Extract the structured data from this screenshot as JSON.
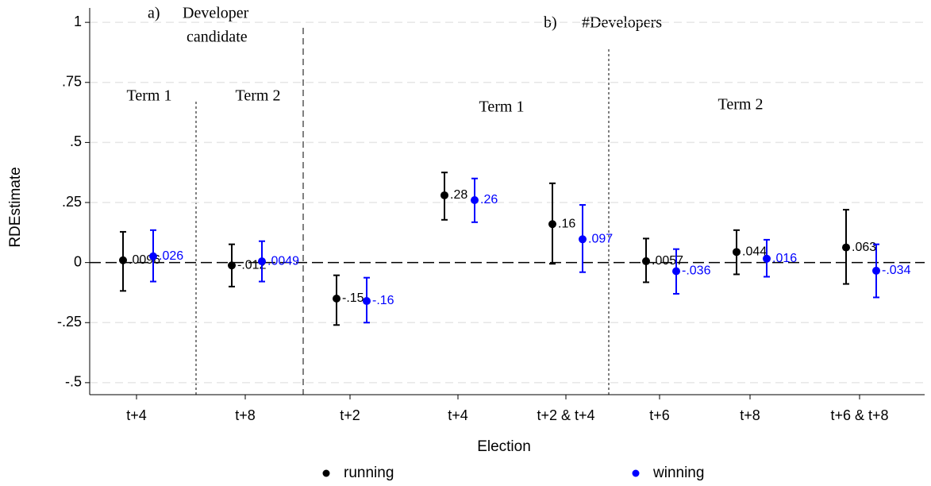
{
  "chart_data": {
    "type": "coefplot",
    "y_label": "RDEstimate",
    "x_label": "Election",
    "annotations": [
      "a)",
      "Developer",
      "candidate",
      "b)",
      "#Developers",
      "Term 1",
      "Term 2",
      "Term 1",
      "Term 2"
    ],
    "categories": [
      "t+4",
      "t+8",
      "t+2",
      "t+4",
      "t+2 & t+4",
      "t+6",
      "t+8",
      "t+6 & t+8"
    ],
    "series": [
      {
        "name": "running",
        "color": "#000000",
        "values": [
          0.0096,
          -0.012,
          -0.15,
          0.28,
          0.16,
          0.0057,
          0.044,
          0.063
        ],
        "value_labels": [
          ".0096",
          "-.012",
          "-.15",
          ".28",
          ".16",
          ".0057",
          ".044",
          ".063"
        ],
        "ci_low": [
          -0.118,
          -0.1,
          -0.26,
          0.178,
          -0.005,
          -0.082,
          -0.049,
          -0.089
        ],
        "ci_high": [
          0.128,
          0.076,
          -0.053,
          0.375,
          0.33,
          0.1,
          0.135,
          0.22
        ]
      },
      {
        "name": "winning",
        "color": "#0000ff",
        "values": [
          0.026,
          0.0049,
          -0.16,
          0.26,
          0.097,
          -0.036,
          0.016,
          -0.034
        ],
        "value_labels": [
          ".026",
          ".0049",
          "-.16",
          ".26",
          ".097",
          "-.036",
          ".016",
          "-.034"
        ],
        "ci_low": [
          -0.079,
          -0.079,
          -0.25,
          0.168,
          -0.04,
          -0.13,
          -0.059,
          -0.145
        ],
        "ci_high": [
          0.135,
          0.089,
          -0.063,
          0.35,
          0.24,
          0.056,
          0.095,
          0.076
        ]
      }
    ],
    "ylim": [
      -0.55,
      1.06
    ],
    "yticks": [
      {
        "value": -0.5,
        "label": "-.5"
      },
      {
        "value": -0.25,
        "label": "-.25"
      },
      0,
      {
        "value": 0.25,
        "label": ".25"
      },
      {
        "value": 0.5,
        "label": ".5"
      },
      {
        "value": 0.75,
        "label": ".75"
      },
      1
    ],
    "grid": true,
    "legend": "bottom"
  }
}
